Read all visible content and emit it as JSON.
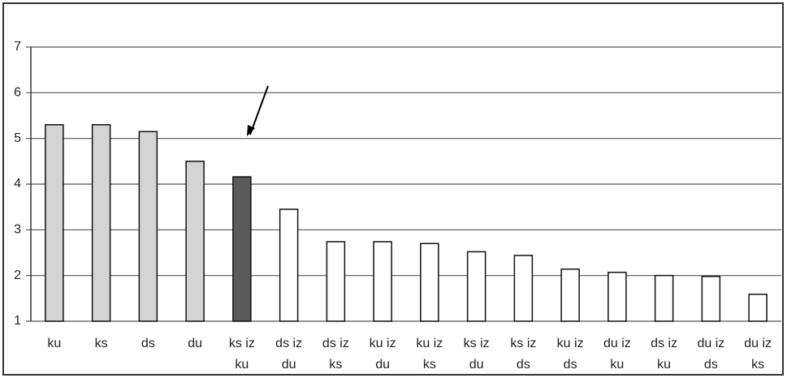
{
  "chart_data": {
    "type": "bar",
    "categories": [
      "ku",
      "ks",
      "ds",
      "du",
      "ks iz ku",
      "ds iz du",
      "ds iz ks",
      "ku iz du",
      "ku iz ks",
      "ks iz du",
      "ks iz ds",
      "ku iz ds",
      "du iz ku",
      "ds iz ku",
      "du iz ds",
      "du iz ks"
    ],
    "values": [
      5.3,
      5.3,
      5.15,
      4.5,
      4.16,
      3.45,
      2.74,
      2.74,
      2.7,
      2.52,
      2.44,
      2.14,
      2.07,
      2.0,
      1.98,
      1.59
    ],
    "colors": [
      "#d4d4d4",
      "#d4d4d4",
      "#d4d4d4",
      "#d4d4d4",
      "#5a5a5a",
      "#ffffff",
      "#ffffff",
      "#ffffff",
      "#ffffff",
      "#ffffff",
      "#ffffff",
      "#ffffff",
      "#ffffff",
      "#ffffff",
      "#ffffff",
      "#ffffff"
    ],
    "ylim": [
      1,
      7
    ],
    "yticks": [
      1,
      2,
      3,
      4,
      5,
      6,
      7
    ],
    "grid": true
  }
}
